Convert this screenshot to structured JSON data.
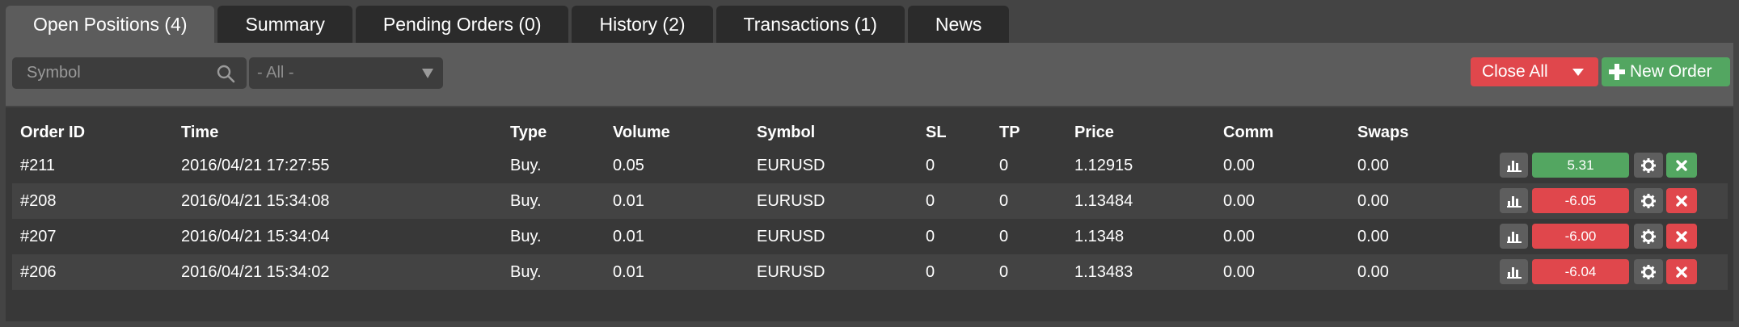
{
  "tabs": [
    {
      "label": "Open Positions (4)",
      "active": true
    },
    {
      "label": "Summary",
      "active": false
    },
    {
      "label": "Pending Orders (0)",
      "active": false
    },
    {
      "label": "History (2)",
      "active": false
    },
    {
      "label": "Transactions (1)",
      "active": false
    },
    {
      "label": "News",
      "active": false
    }
  ],
  "toolbar": {
    "symbol_placeholder": "Symbol",
    "filter_value": "- All -",
    "close_all_label": "Close All",
    "new_order_label": "New Order"
  },
  "table": {
    "headers": {
      "order_id": "Order ID",
      "time": "Time",
      "type": "Type",
      "volume": "Volume",
      "symbol": "Symbol",
      "sl": "SL",
      "tp": "TP",
      "price": "Price",
      "comm": "Comm",
      "swaps": "Swaps"
    },
    "rows": [
      {
        "order_id": "#211",
        "time": "2016/04/21 17:27:55",
        "type": "Buy.",
        "volume": "0.05",
        "symbol": "EURUSD",
        "sl": "0",
        "tp": "0",
        "price": "1.12915",
        "comm": "0.00",
        "swaps": "0.00",
        "pl": "5.31"
      },
      {
        "order_id": "#208",
        "time": "2016/04/21 15:34:08",
        "type": "Buy.",
        "volume": "0.01",
        "symbol": "EURUSD",
        "sl": "0",
        "tp": "0",
        "price": "1.13484",
        "comm": "0.00",
        "swaps": "0.00",
        "pl": "-6.05"
      },
      {
        "order_id": "#207",
        "time": "2016/04/21 15:34:04",
        "type": "Buy.",
        "volume": "0.01",
        "symbol": "EURUSD",
        "sl": "0",
        "tp": "0",
        "price": "1.1348",
        "comm": "0.00",
        "swaps": "0.00",
        "pl": "-6.00"
      },
      {
        "order_id": "#206",
        "time": "2016/04/21 15:34:02",
        "type": "Buy.",
        "volume": "0.01",
        "symbol": "EURUSD",
        "sl": "0",
        "tp": "0",
        "price": "1.13483",
        "comm": "0.00",
        "swaps": "0.00",
        "pl": "-6.04"
      }
    ]
  },
  "icons": {
    "search": "search-icon",
    "dropdown": "triangle-down-icon",
    "plus": "plus-icon",
    "chart": "bar-chart-icon",
    "gear": "gear-icon",
    "close": "close-icon"
  },
  "colors": {
    "profit": "#53a661",
    "loss": "#e0474c",
    "tab_active": "#5c5c5c",
    "tab_inactive": "#2b2b2b",
    "panel": "#383838"
  }
}
